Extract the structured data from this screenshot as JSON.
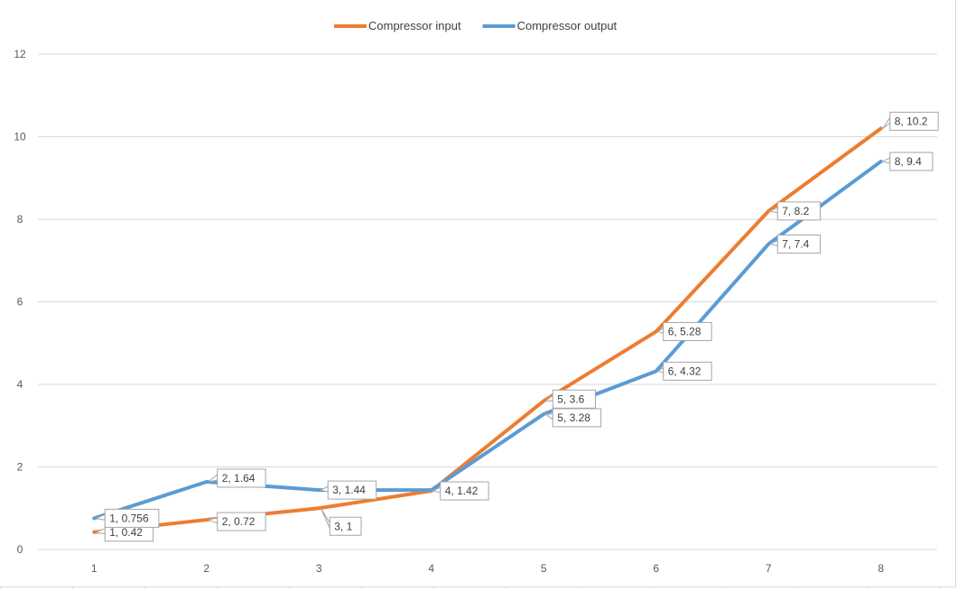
{
  "chart_data": {
    "type": "line",
    "title": "",
    "xlabel": "",
    "ylabel": "",
    "x": [
      1,
      2,
      3,
      4,
      5,
      6,
      7,
      8
    ],
    "ylim": [
      0,
      12
    ],
    "yticks": [
      0,
      2,
      4,
      6,
      8,
      10,
      12
    ],
    "grid": true,
    "legend_position": "top",
    "series": [
      {
        "name": "Compressor input",
        "color": "#ED7D31",
        "values": [
          0.42,
          0.72,
          1,
          1.42,
          3.6,
          5.28,
          8.2,
          10.2
        ],
        "labels": [
          "1, 0.42",
          "2, 0.72",
          "3, 1",
          "4, 1.42",
          "5, 3.6",
          "6, 5.28",
          "7, 8.2",
          "8, 10.2"
        ]
      },
      {
        "name": "Compressor output",
        "color": "#5B9BD5",
        "values": [
          0.756,
          1.64,
          1.44,
          1.44,
          3.28,
          4.32,
          7.4,
          9.4
        ],
        "labels": [
          "1, 0.756",
          "2, 1.64",
          "3, 1.44",
          "",
          "5, 3.28",
          "6, 4.32",
          "7, 7.4",
          "8, 9.4"
        ]
      }
    ]
  }
}
